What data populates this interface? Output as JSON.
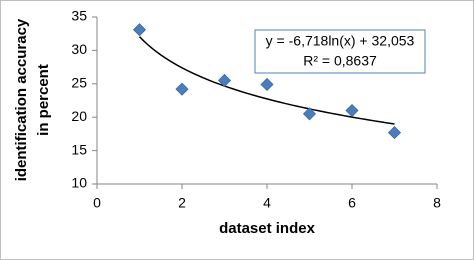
{
  "chart_data": {
    "type": "scatter",
    "x": [
      1,
      2,
      3,
      4,
      5,
      6,
      7
    ],
    "values": [
      33.1,
      24.2,
      25.5,
      24.9,
      20.5,
      21.0,
      17.7
    ],
    "color": "#4a7ebb",
    "xlim": [
      0,
      8
    ],
    "xticks": [
      0,
      2,
      4,
      6,
      8
    ],
    "ylim": [
      10,
      35
    ],
    "yticks": [
      10,
      15,
      20,
      25,
      30,
      35
    ],
    "xlabel": "dataset index",
    "ylabel": [
      "identification accuracy",
      "in percent"
    ],
    "grid": false,
    "trendline": {
      "kind": "log",
      "slope": -6.718,
      "intercept": 32.053,
      "equation": "y = -6,718ln(x) + 32,053",
      "r_squared": "R² = 0,8637"
    }
  }
}
